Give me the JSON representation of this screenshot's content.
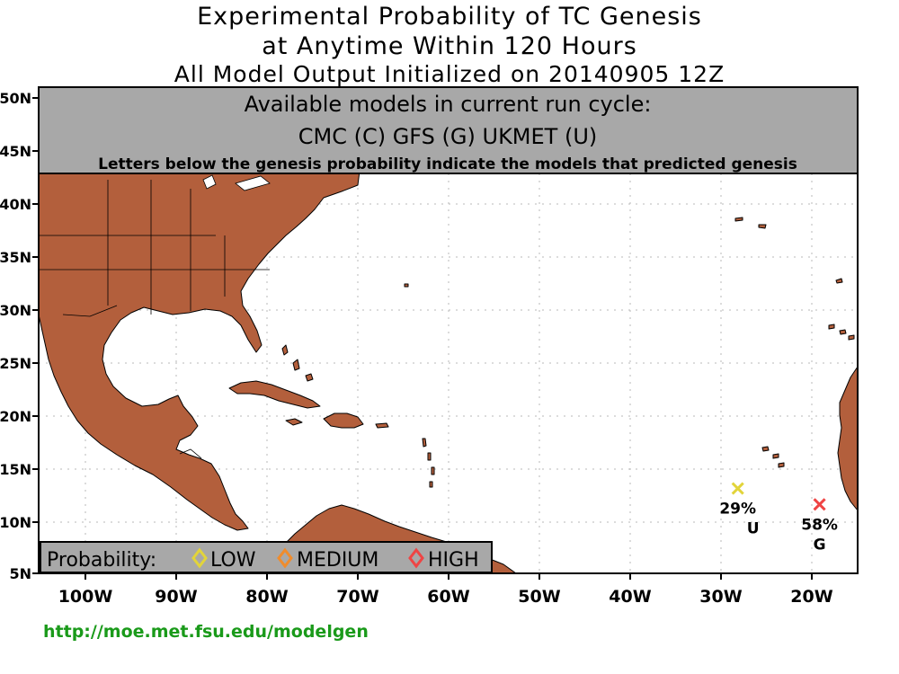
{
  "title": {
    "line1": "Experimental Probability of TC Genesis",
    "line2": "at Anytime Within 120 Hours",
    "line3": "All Model Output Initialized on 20140905 12Z"
  },
  "models_box": {
    "heading": "Available models in current run cycle:",
    "models": "CMC (C) GFS (G)  UKMET (U)",
    "note": "Letters below the genesis probability indicate the models that predicted genesis"
  },
  "axes": {
    "lon_ticks": [
      "100W",
      "90W",
      "80W",
      "70W",
      "60W",
      "50W",
      "40W",
      "30W",
      "20W"
    ],
    "lat_ticks": [
      "50N",
      "45N",
      "40N",
      "35N",
      "30N",
      "25N",
      "20N",
      "15N",
      "10N",
      "5N"
    ]
  },
  "legend": {
    "label": "Probability:",
    "low": "LOW",
    "medium": "MEDIUM",
    "high": "HIGH"
  },
  "colors": {
    "land": "#b35f3c",
    "header_box": "#a8a8a8",
    "low": "#e2d43a",
    "medium": "#f08c2c",
    "high": "#ef4444",
    "url": "#1a9a1a"
  },
  "markers": [
    {
      "lon": -28,
      "lat": 13,
      "percent": "29%",
      "models": "U",
      "level": "low"
    },
    {
      "lon": -19,
      "lat": 11.5,
      "percent": "58%",
      "models": "G",
      "level": "high"
    }
  ],
  "url": "http://moe.met.fsu.edu/modelgen"
}
